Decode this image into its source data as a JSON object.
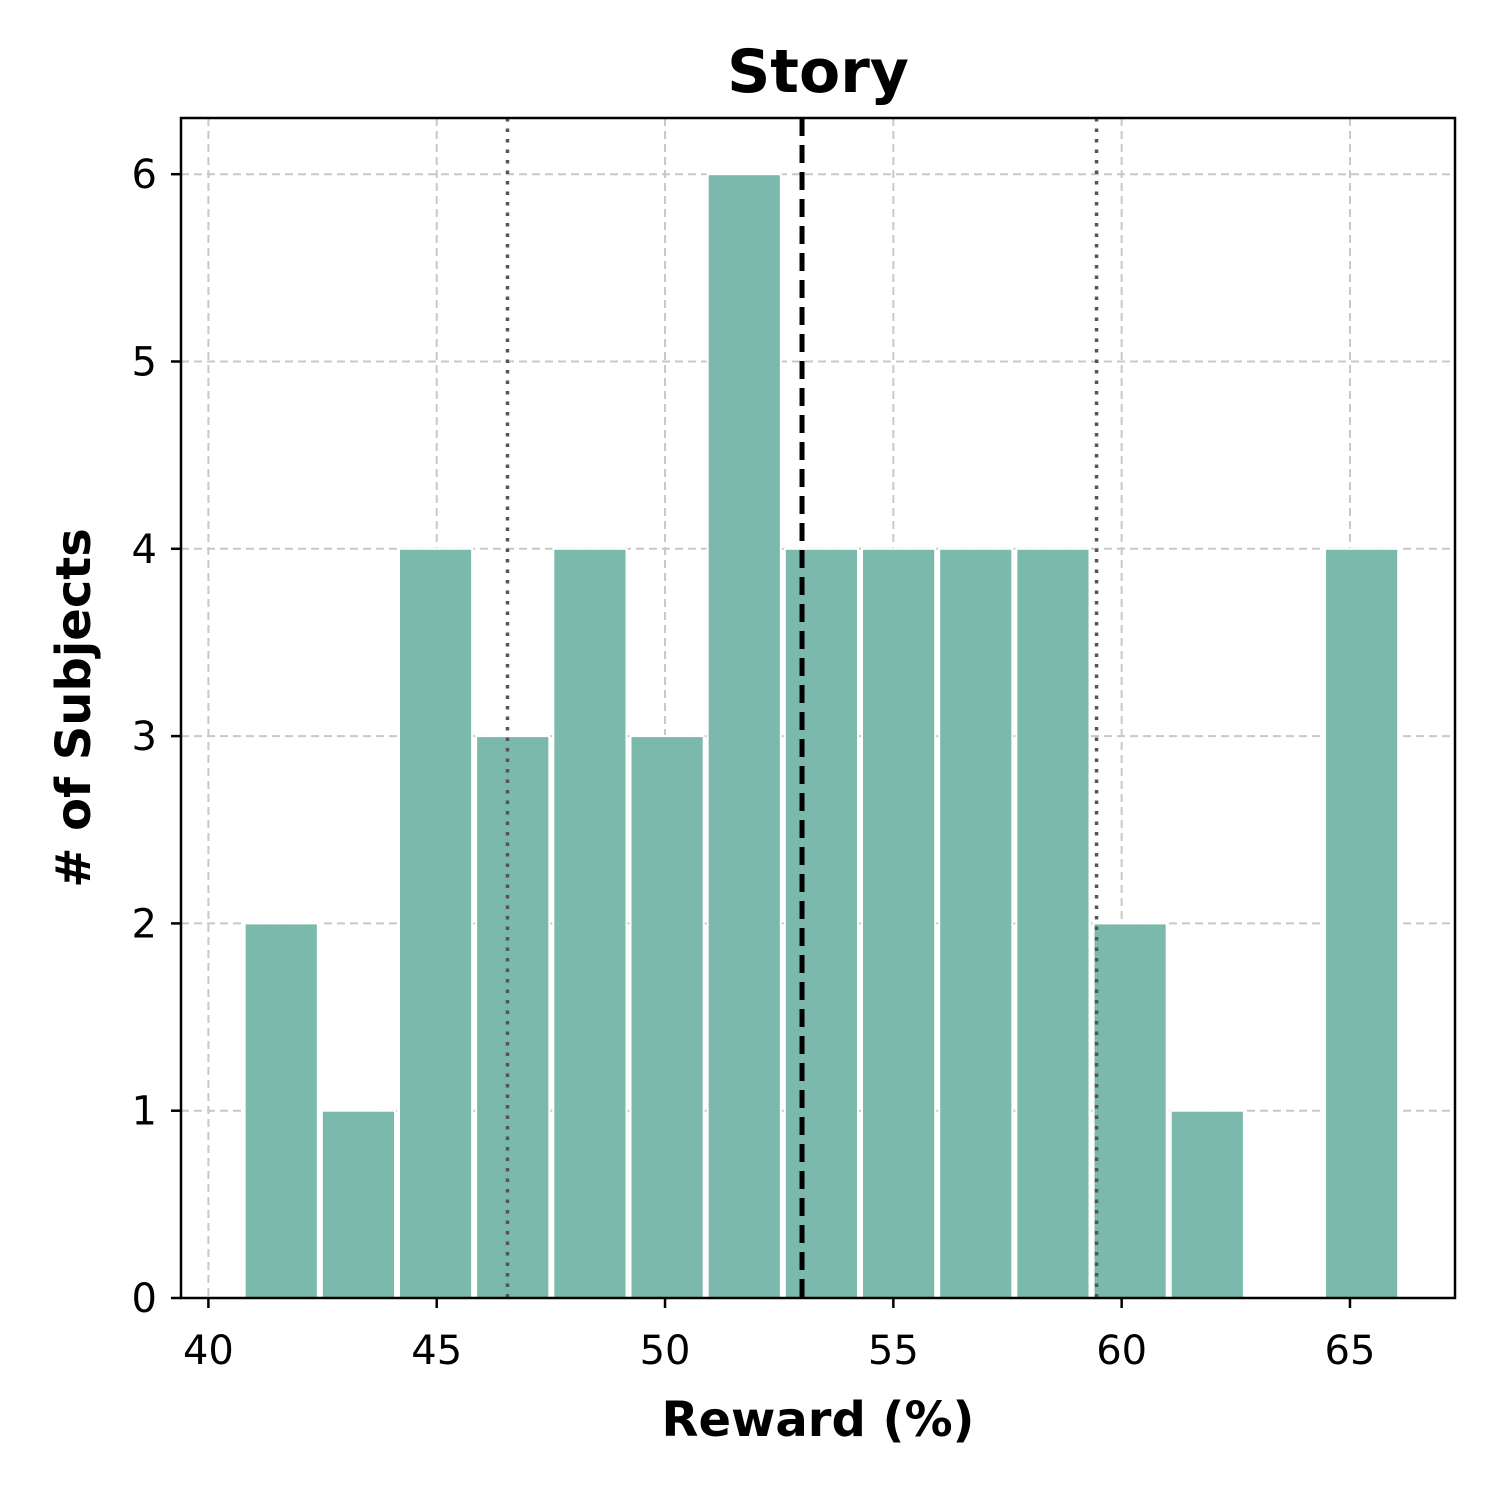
{
  "chart_data": {
    "type": "bar",
    "title": "Story",
    "xlabel": "Reward (%)",
    "ylabel": "# of Subjects",
    "xlim": [
      39.4,
      67.3
    ],
    "ylim": [
      0,
      6.3
    ],
    "xticks": [
      40,
      45,
      50,
      55,
      60,
      65
    ],
    "yticks": [
      0,
      1,
      2,
      3,
      4,
      5,
      6
    ],
    "grid": true,
    "bar_color": "#7bb9ac",
    "bin_width": 1.69,
    "bins": [
      {
        "start": 40.75,
        "end": 42.44,
        "count": 2
      },
      {
        "start": 42.44,
        "end": 44.13,
        "count": 1
      },
      {
        "start": 44.13,
        "end": 45.82,
        "count": 4
      },
      {
        "start": 45.82,
        "end": 47.51,
        "count": 3
      },
      {
        "start": 47.51,
        "end": 49.2,
        "count": 4
      },
      {
        "start": 49.2,
        "end": 50.89,
        "count": 3
      },
      {
        "start": 50.89,
        "end": 52.58,
        "count": 6
      },
      {
        "start": 52.58,
        "end": 54.27,
        "count": 4
      },
      {
        "start": 54.27,
        "end": 55.96,
        "count": 4
      },
      {
        "start": 55.96,
        "end": 57.65,
        "count": 4
      },
      {
        "start": 57.65,
        "end": 59.34,
        "count": 4
      },
      {
        "start": 59.34,
        "end": 61.03,
        "count": 2
      },
      {
        "start": 61.03,
        "end": 62.72,
        "count": 1
      },
      {
        "start": 62.72,
        "end": 64.41,
        "count": 0
      },
      {
        "start": 64.41,
        "end": 66.1,
        "count": 4
      }
    ],
    "reference_lines": [
      {
        "x": 53.0,
        "style": "dashed",
        "color": "#000000"
      },
      {
        "x": 46.55,
        "style": "dotted",
        "color": "#555555"
      },
      {
        "x": 59.45,
        "style": "dotted",
        "color": "#555555"
      }
    ]
  }
}
